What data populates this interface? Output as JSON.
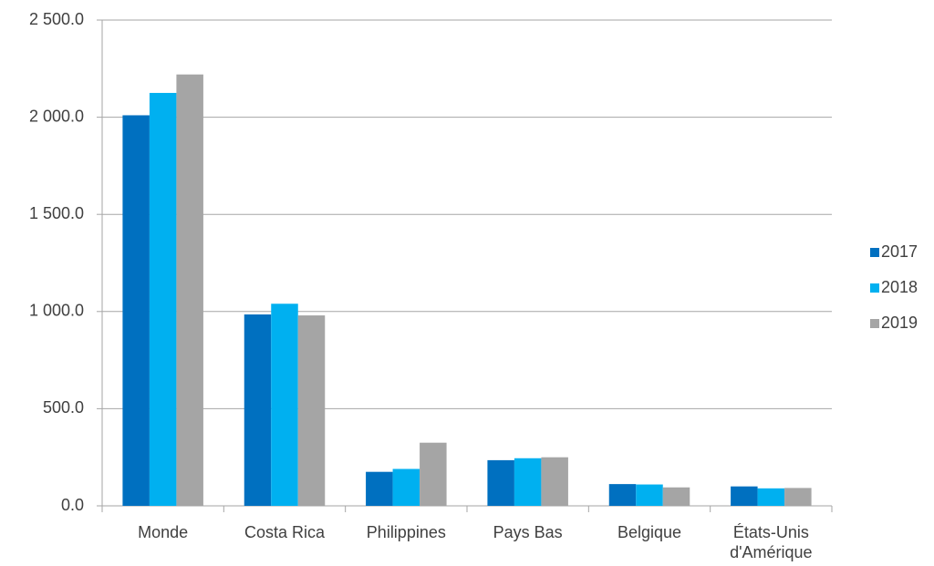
{
  "chart_data": {
    "type": "bar",
    "categories": [
      "Monde",
      "Costa Rica",
      "Philippines",
      "Pays Bas",
      "Belgique",
      "États-Unis d'Amérique"
    ],
    "series": [
      {
        "name": "2017",
        "color": "#0070c0",
        "values": [
          2010,
          985,
          175,
          235,
          112,
          100
        ]
      },
      {
        "name": "2018",
        "color": "#00b0f0",
        "values": [
          2125,
          1040,
          190,
          245,
          110,
          90
        ]
      },
      {
        "name": "2019",
        "color": "#a5a5a5",
        "values": [
          2220,
          980,
          325,
          250,
          95,
          92
        ]
      }
    ],
    "ylim": [
      0,
      2500
    ],
    "yticks": [
      {
        "value": 0,
        "label": "0.0"
      },
      {
        "value": 500,
        "label": "500.0"
      },
      {
        "value": 1000,
        "label": "1 000.0"
      },
      {
        "value": 1500,
        "label": "1 500.0"
      },
      {
        "value": 2000,
        "label": "2 000.0"
      },
      {
        "value": 2500,
        "label": "2 500.0"
      }
    ],
    "grid": true
  }
}
